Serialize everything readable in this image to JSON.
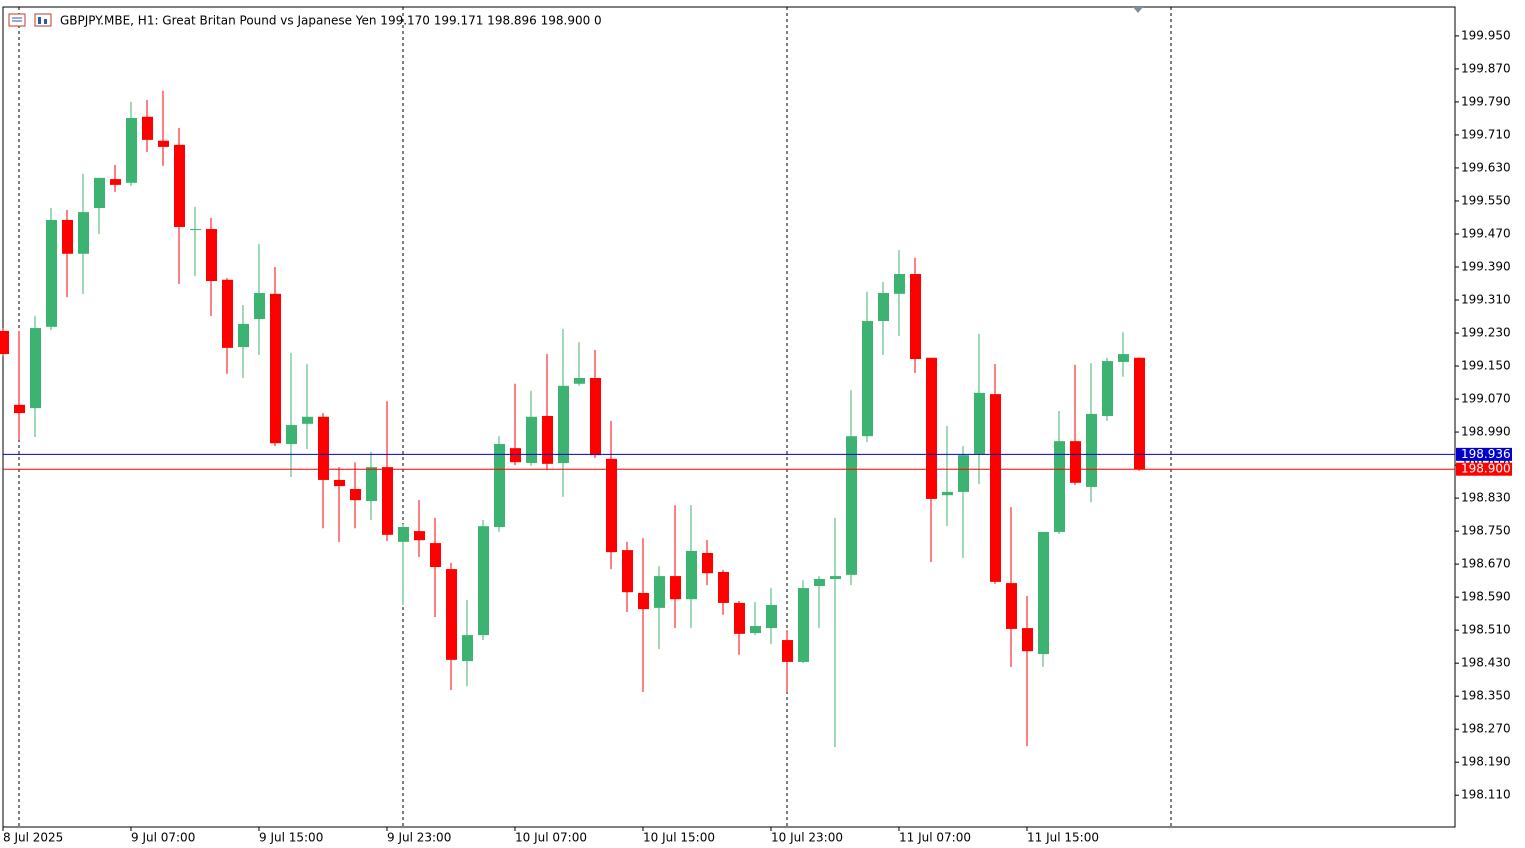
{
  "chart_data": {
    "type": "candlestick",
    "title": "GBPJPY.MBE, H1:  Great Britan Pound vs Japanese Yen  199.170 199.171 198.896 198.900  0",
    "x": [
      "8 Jul 2025",
      null,
      null,
      null,
      null,
      null,
      null,
      null,
      "9 Jul 07:00",
      null,
      null,
      null,
      null,
      null,
      null,
      null,
      "9 Jul 15:00",
      null,
      null,
      null,
      null,
      null,
      null,
      null,
      "9 Jul 23:00",
      null,
      null,
      null,
      null,
      null,
      null,
      null,
      "10 Jul 07:00",
      null,
      null,
      null,
      null,
      null,
      null,
      null,
      "10 Jul 15:00",
      null,
      null,
      null,
      null,
      null,
      null,
      null,
      "10 Jul 23:00",
      null,
      null,
      null,
      null,
      null,
      null,
      null,
      "11 Jul 07:00",
      null,
      null,
      null,
      null,
      null,
      null,
      null,
      "11 Jul 15:00",
      null,
      null,
      null,
      null,
      null,
      null,
      null
    ],
    "open": [
      199.235,
      199.056,
      199.048,
      199.245,
      199.504,
      199.422,
      199.533,
      199.603,
      199.594,
      199.754,
      199.696,
      199.686,
      199.48,
      199.482,
      199.359,
      199.196,
      199.264,
      199.325,
      198.961,
      199.01,
      199.027,
      198.874,
      198.852,
      198.823,
      198.905,
      198.724,
      198.75,
      198.721,
      198.658,
      198.435,
      198.498,
      198.76,
      198.951,
      198.915,
      199.029,
      198.915,
      199.107,
      199.121,
      198.925,
      198.704,
      198.6,
      198.564,
      198.641,
      198.585,
      198.697,
      198.651,
      198.576,
      198.503,
      198.515,
      198.486,
      198.433,
      198.617,
      198.634,
      198.644,
      198.98,
      199.259,
      199.325,
      199.373,
      199.17,
      198.837,
      198.845,
      198.937,
      199.082,
      198.624,
      198.515,
      198.452,
      198.748,
      198.968,
      198.857,
      199.029,
      199.16,
      199.17
    ],
    "high": [
      199.242,
      199.235,
      199.271,
      199.533,
      199.528,
      199.616,
      199.606,
      199.637,
      199.79,
      199.795,
      199.817,
      199.727,
      199.536,
      199.509,
      199.363,
      199.298,
      199.446,
      199.39,
      199.182,
      199.155,
      199.036,
      198.905,
      198.917,
      198.942,
      199.065,
      198.767,
      198.825,
      198.782,
      198.673,
      198.583,
      198.777,
      198.98,
      199.107,
      199.09,
      199.179,
      199.24,
      199.208,
      199.189,
      199.017,
      198.724,
      198.733,
      198.665,
      198.813,
      198.813,
      198.728,
      198.656,
      198.581,
      198.578,
      198.612,
      198.51,
      198.631,
      198.641,
      198.782,
      199.092,
      199.33,
      199.354,
      199.431,
      199.412,
      199.17,
      199.005,
      198.956,
      199.228,
      199.155,
      198.808,
      198.593,
      198.748,
      199.041,
      199.153,
      199.157,
      199.17,
      199.232,
      199.171
    ],
    "low": [
      199.174,
      198.971,
      198.978,
      199.237,
      199.317,
      199.325,
      199.47,
      199.572,
      199.586,
      199.669,
      199.635,
      199.349,
      199.368,
      199.271,
      199.131,
      199.121,
      199.177,
      198.956,
      198.881,
      198.949,
      198.757,
      198.724,
      198.757,
      198.777,
      198.726,
      198.571,
      198.687,
      198.542,
      198.365,
      198.374,
      198.486,
      198.748,
      198.91,
      198.908,
      198.898,
      198.833,
      199.102,
      198.927,
      198.658,
      198.554,
      198.36,
      198.464,
      198.515,
      198.515,
      198.619,
      198.547,
      198.45,
      198.498,
      198.476,
      198.36,
      198.43,
      198.515,
      198.227,
      198.619,
      198.966,
      199.177,
      199.223,
      199.133,
      198.675,
      198.762,
      198.685,
      198.864,
      198.622,
      198.421,
      198.229,
      198.421,
      198.743,
      198.862,
      198.82,
      199.017,
      199.124,
      198.896
    ],
    "close": [
      199.179,
      199.036,
      199.242,
      199.504,
      199.422,
      199.523,
      199.606,
      199.589,
      199.751,
      199.698,
      199.681,
      199.487,
      199.482,
      199.356,
      199.194,
      199.252,
      199.327,
      198.963,
      199.007,
      199.027,
      198.874,
      198.859,
      198.825,
      198.905,
      198.741,
      198.76,
      198.728,
      198.663,
      198.438,
      198.498,
      198.762,
      198.961,
      198.917,
      199.027,
      198.913,
      199.102,
      199.121,
      198.934,
      198.699,
      198.602,
      198.561,
      198.641,
      198.585,
      198.702,
      198.648,
      198.576,
      198.501,
      198.52,
      198.571,
      198.433,
      198.612,
      198.634,
      198.641,
      198.98,
      199.259,
      199.327,
      199.373,
      199.167,
      198.828,
      198.845,
      198.934,
      199.085,
      198.627,
      198.513,
      198.459,
      198.748,
      198.968,
      198.867,
      199.034,
      199.162,
      199.179,
      198.9
    ],
    "up_color": "#3cb371",
    "down_color": "#ff0000",
    "ylim": [
      198.033,
      200.02
    ],
    "yticks": [
      {
        "value": 199.95,
        "label": "199.950"
      },
      {
        "value": 199.87,
        "label": "199.870"
      },
      {
        "value": 199.79,
        "label": "199.790"
      },
      {
        "value": 199.71,
        "label": "199.710"
      },
      {
        "value": 199.63,
        "label": "199.630"
      },
      {
        "value": 199.55,
        "label": "199.550"
      },
      {
        "value": 199.47,
        "label": "199.470"
      },
      {
        "value": 199.39,
        "label": "199.390"
      },
      {
        "value": 199.31,
        "label": "199.310"
      },
      {
        "value": 199.23,
        "label": "199.230"
      },
      {
        "value": 199.15,
        "label": "199.150"
      },
      {
        "value": 199.07,
        "label": "199.070"
      },
      {
        "value": 198.99,
        "label": "198.990"
      },
      {
        "value": 198.91,
        "label": "198.910"
      },
      {
        "value": 198.83,
        "label": "198.830"
      },
      {
        "value": 198.75,
        "label": "198.750"
      },
      {
        "value": 198.67,
        "label": "198.670"
      },
      {
        "value": 198.59,
        "label": "198.590"
      },
      {
        "value": 198.51,
        "label": "198.510"
      },
      {
        "value": 198.43,
        "label": "198.430"
      },
      {
        "value": 198.35,
        "label": "198.350"
      },
      {
        "value": 198.27,
        "label": "198.270"
      },
      {
        "value": 198.19,
        "label": "198.190"
      },
      {
        "value": 198.11,
        "label": "198.110"
      }
    ],
    "price_lines": [
      {
        "value": 198.936,
        "label": "198.936",
        "color": "#0000cd"
      },
      {
        "value": 198.9,
        "label": "198.900",
        "color": "#ff0000"
      }
    ]
  }
}
